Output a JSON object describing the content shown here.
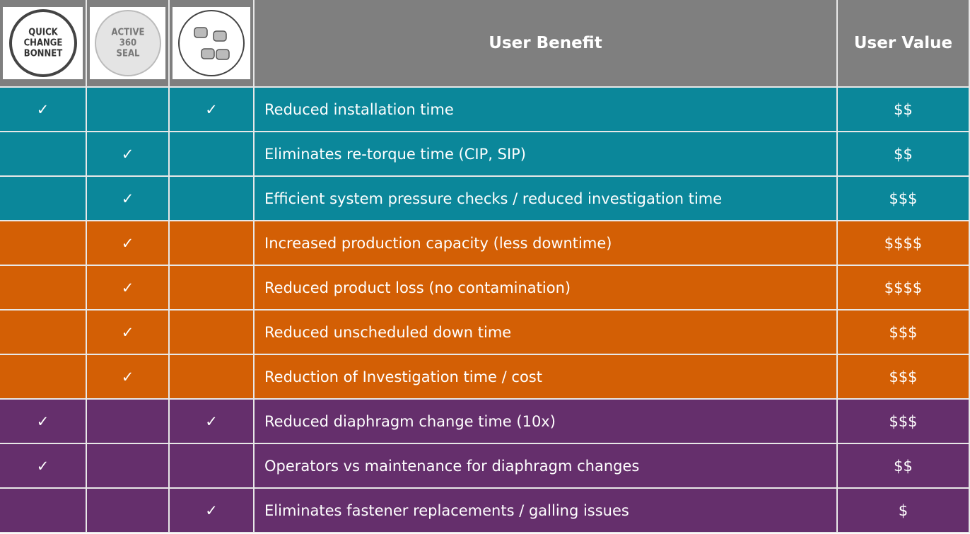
{
  "header": {
    "icon_labels": [
      [
        "QUICK",
        "CHANGE",
        "BONNET"
      ],
      [
        "ACTIVE",
        "360",
        "SEAL"
      ]
    ],
    "columns": [
      "User Benefit",
      "User Value"
    ]
  },
  "rows": [
    {
      "checks": [
        "✓",
        null,
        "✓"
      ],
      "benefit": "Reduced installation time",
      "value": "$$",
      "color": "#0b879a"
    },
    {
      "checks": [
        null,
        "✓",
        null
      ],
      "benefit": "Eliminates re-torque time (CIP, SIP)",
      "value": "$$",
      "color": "#0b879a"
    },
    {
      "checks": [
        null,
        "✓",
        null
      ],
      "benefit": "Efficient system pressure checks / reduced investigation time",
      "value": "$$$",
      "color": "#0b879a"
    },
    {
      "checks": [
        null,
        "✓",
        null
      ],
      "benefit": "Increased production capacity (less downtime)",
      "value": "$$$$",
      "color": "#d35f05"
    },
    {
      "checks": [
        null,
        "✓",
        null
      ],
      "benefit": "Reduced product loss (no contamination)",
      "value": "$$$$",
      "color": "#d35f05"
    },
    {
      "checks": [
        null,
        "✓",
        null
      ],
      "benefit": "Reduced unscheduled down time",
      "value": "$$$",
      "color": "#d35f05"
    },
    {
      "checks": [
        null,
        "✓",
        null
      ],
      "benefit": "Reduction of Investigation time / cost",
      "value": "$$$",
      "color": "#d35f05"
    },
    {
      "checks": [
        "✓",
        null,
        "✓"
      ],
      "benefit": "Reduced diaphragm change time (10x)",
      "value": "$$$",
      "color": "#652f6c"
    },
    {
      "checks": [
        "✓",
        null,
        null
      ],
      "benefit": "Operators vs maintenance for diaphragm changes",
      "value": "$$",
      "color": "#652f6c"
    },
    {
      "checks": [
        null,
        null,
        "✓"
      ],
      "benefit": "Eliminates fastener replacements / galling issues",
      "value": "$",
      "color": "#652f6c"
    }
  ]
}
